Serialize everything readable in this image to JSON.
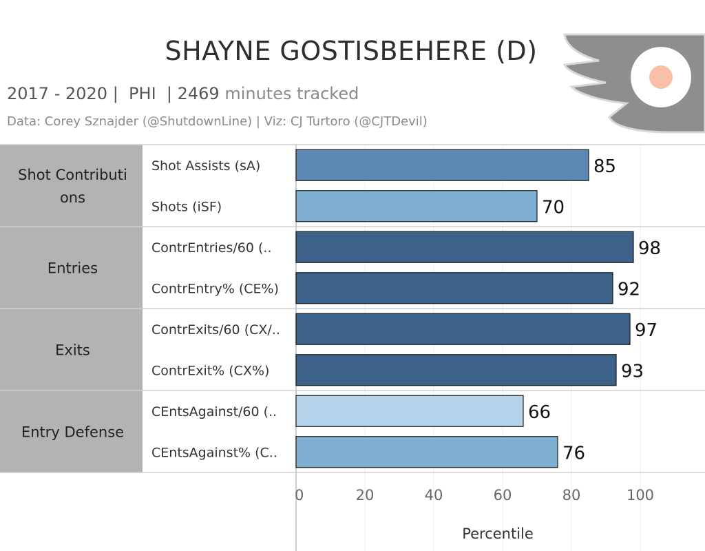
{
  "header": {
    "title": "SHAYNE GOSTISBEHERE (D)",
    "subtitle_main": "2017 - 2020 |  PHI  | 2469 ",
    "subtitle_light": "minutes tracked",
    "credit": "Data: Corey Sznajder (@ShutdownLine) | Viz: CJ Turtoro (@CJTDevil)"
  },
  "logo": {
    "icon": "philadelphia-flyers-logo-icon",
    "color_gray": "#8e8e8e",
    "color_orange": "#f9c0a6"
  },
  "chart_data": {
    "type": "bar",
    "orientation": "horizontal",
    "xlabel": "Percentile",
    "xlim": [
      0,
      100
    ],
    "xticks": [
      0,
      20,
      40,
      60,
      80,
      100
    ],
    "grid": true,
    "groups": [
      {
        "label": "Shot Contributions",
        "label_lines": [
          "Shot Contributi",
          "ons"
        ],
        "items": [
          {
            "label": "Shot Assists (sA)",
            "value": 85,
            "color": "#5b89b3"
          },
          {
            "label": "Shots (iSF)",
            "value": 70,
            "color": "#7fafd2"
          }
        ]
      },
      {
        "label": "Entries",
        "label_lines": [
          "Entries"
        ],
        "items": [
          {
            "label": "ContrEntries/60 (..",
            "value": 98,
            "color": "#3c6289"
          },
          {
            "label": "ContrEntry% (CE%)",
            "value": 92,
            "color": "#3c6289"
          }
        ]
      },
      {
        "label": "Exits",
        "label_lines": [
          "Exits"
        ],
        "items": [
          {
            "label": "ContrExits/60 (CX/..",
            "value": 97,
            "color": "#3c6289"
          },
          {
            "label": "ContrExit% (CX%)",
            "value": 93,
            "color": "#3c6289"
          }
        ]
      },
      {
        "label": "Entry Defense",
        "label_lines": [
          "Entry Defense"
        ],
        "items": [
          {
            "label": "CEntsAgainst/60 (..",
            "value": 66,
            "color": "#b4d2ea"
          },
          {
            "label": "CEntsAgainst% (C..",
            "value": 76,
            "color": "#7fafd2"
          }
        ]
      }
    ]
  }
}
